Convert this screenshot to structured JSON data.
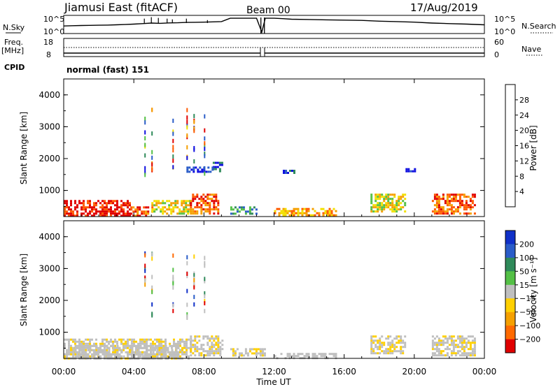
{
  "header": {
    "station": "Jiamusi East (fitACF)",
    "beam": "Beam 00",
    "date": "17/Aug/2019"
  },
  "left_labels": {
    "nsky": "N.Sky",
    "freq": "Freq.",
    "mhz": "[MHz]",
    "cpid": "CPID"
  },
  "right_labels": {
    "nsearch": "N.Search",
    "nave": "Nave"
  },
  "cpid_text": "normal (fast) 151",
  "colors": {
    "power": [
      "#1010e0",
      "#2a5cc8",
      "#2f8a5a",
      "#54c046",
      "#f2e000",
      "#f5a000",
      "#ff5a00",
      "#e00000"
    ],
    "velocity_pos": [
      "#1030c8",
      "#2a5cc8",
      "#2f8a5a",
      "#54c046"
    ],
    "velocity_zero": "#bfbfbf",
    "velocity_neg": [
      "#ffd000",
      "#f5a000",
      "#ff6a00",
      "#e00000"
    ]
  },
  "chart_data": [
    {
      "type": "line",
      "name": "noise-panel",
      "left_axis": {
        "label": "N.Sky",
        "ticks": [
          "10^5",
          "10^0"
        ]
      },
      "right_axis": {
        "label": "N.Search",
        "ticks": [
          "10^5",
          "10^0"
        ]
      },
      "x": [
        0,
        0.5,
        1,
        1.5,
        2,
        2.5,
        3,
        3.5,
        4,
        4.5,
        5,
        5.5,
        6,
        6.5,
        7,
        7.5,
        8,
        8.5,
        9,
        9.5,
        10,
        10.5,
        11,
        11.3,
        11.5,
        12,
        12.5,
        13,
        14,
        15,
        16,
        17,
        18,
        19,
        20,
        21,
        22,
        23,
        24
      ],
      "nsky_rel": [
        0.42,
        0.44,
        0.45,
        0.46,
        0.47,
        0.48,
        0.5,
        0.52,
        0.55,
        0.58,
        0.62,
        0.6,
        0.63,
        0.64,
        0.66,
        0.67,
        0.68,
        0.7,
        0.72,
        0.95,
        0.95,
        0.95,
        0.95,
        0.0,
        0.95,
        0.95,
        0.92,
        0.88,
        0.86,
        0.84,
        0.82,
        0.8,
        0.75,
        0.72,
        0.68,
        0.62,
        0.58,
        0.55,
        0.5
      ]
    },
    {
      "type": "line",
      "name": "freq-nave-panel",
      "left_axis": {
        "label": "Freq. [MHz]",
        "ticks": [
          18,
          8
        ]
      },
      "right_axis": {
        "label": "Nave",
        "ticks": [
          60,
          0
        ]
      },
      "freq_mhz": 9.0,
      "nave": 33
    },
    {
      "type": "heatmap",
      "name": "power",
      "ylabel": "Slant Range [km]",
      "yticks": [
        1000,
        2000,
        3000,
        4000
      ],
      "ylim": [
        180,
        4500
      ],
      "colorbar": {
        "label": "Power [dB]",
        "ticks": [
          4,
          8,
          12,
          16,
          20,
          24,
          28
        ]
      },
      "regions": [
        {
          "t": [
            0,
            3.8
          ],
          "r": [
            200,
            700
          ],
          "level": 7
        },
        {
          "t": [
            3.8,
            5
          ],
          "r": [
            200,
            500
          ],
          "level": 6
        },
        {
          "t": [
            5,
            7.2
          ],
          "r": [
            300,
            700
          ],
          "level": 4
        },
        {
          "t": [
            7.2,
            8.8
          ],
          "r": [
            300,
            900
          ],
          "level": 6
        },
        {
          "t": [
            8.5,
            9.0
          ],
          "r": [
            1600,
            1900
          ],
          "level": 1
        },
        {
          "t": [
            7,
            8.5
          ],
          "r": [
            1600,
            1750
          ],
          "level": 0
        },
        {
          "t": [
            9.5,
            11
          ],
          "r": [
            300,
            500
          ],
          "level": 2
        },
        {
          "t": [
            12,
            15.5
          ],
          "r": [
            200,
            450
          ],
          "level": 5
        },
        {
          "t": [
            12.5,
            13.2
          ],
          "r": [
            1550,
            1650
          ],
          "level": 1
        },
        {
          "t": [
            17.5,
            19.5
          ],
          "r": [
            350,
            900
          ],
          "level": 4
        },
        {
          "t": [
            19.5,
            20
          ],
          "r": [
            1600,
            1700
          ],
          "level": 0
        },
        {
          "t": [
            21,
            23.5
          ],
          "r": [
            250,
            900
          ],
          "level": 6
        }
      ]
    },
    {
      "type": "heatmap",
      "name": "velocity",
      "ylabel": "Slant Range [km]",
      "yticks": [
        1000,
        2000,
        3000,
        4000
      ],
      "ylim": [
        180,
        4500
      ],
      "xticks": [
        "00:00",
        "04:00",
        "08:00",
        "12:00",
        "16:00",
        "20:00",
        "00:00"
      ],
      "xlabel": "Time UT",
      "colorbar": {
        "label": "Velocity [m s⁻¹]",
        "ticks": [
          "200",
          "100",
          "50",
          "15",
          "−15",
          "−50",
          "−100",
          "−200"
        ]
      },
      "regions": [
        {
          "t": [
            0,
            7.2
          ],
          "r": [
            200,
            800
          ],
          "level": 4
        },
        {
          "t": [
            7.2,
            9
          ],
          "r": [
            250,
            900
          ],
          "level": 4
        },
        {
          "t": [
            9.5,
            11.5
          ],
          "r": [
            300,
            500
          ],
          "level": 4
        },
        {
          "t": [
            12,
            15.5
          ],
          "r": [
            180,
            350
          ],
          "level": 5
        },
        {
          "t": [
            17.5,
            19.5
          ],
          "r": [
            350,
            900
          ],
          "level": 4
        },
        {
          "t": [
            21,
            23.5
          ],
          "r": [
            250,
            900
          ],
          "level": 4
        },
        {
          "t": [
            0.5,
            6.5
          ],
          "r": [
            200,
            600
          ],
          "level": 5
        }
      ]
    }
  ]
}
